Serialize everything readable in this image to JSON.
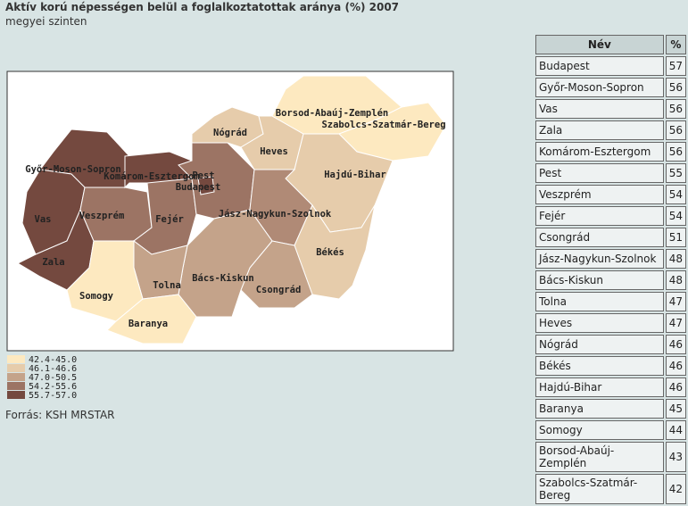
{
  "header": {
    "title": "Aktív korú népességen belül a foglalkoztatottak aránya (%) 2007",
    "subtitle": "megyei szinten"
  },
  "map": {
    "regions": [
      {
        "label": "Győr-Moson-Sopron",
        "color": "#74493f"
      },
      {
        "label": "Vas",
        "color": "#74493f"
      },
      {
        "label": "Zala",
        "color": "#74493f"
      },
      {
        "label": "Veszprém",
        "color": "#9c7464"
      },
      {
        "label": "Komárom-Esztergom",
        "color": "#74493f"
      },
      {
        "label": "Fejér",
        "color": "#9c7464"
      },
      {
        "label": "Pest",
        "color": "#9c7464"
      },
      {
        "label": "Budapest",
        "color": "#74493f"
      },
      {
        "label": "Nógrád",
        "color": "#e6ccab"
      },
      {
        "label": "Heves",
        "color": "#e6ccab"
      },
      {
        "label": "Borsod-Abaúj-Zemplén",
        "color": "#fde9c0"
      },
      {
        "label": "Szabolcs-Szatmár-Bereg",
        "color": "#fde9c0"
      },
      {
        "label": "Hajdú-Bihar",
        "color": "#e6ccab"
      },
      {
        "label": "Jász-Nagykun-Szolnok",
        "color": "#b08a76"
      },
      {
        "label": "Békés",
        "color": "#e6ccab"
      },
      {
        "label": "Csongrád",
        "color": "#c4a38a"
      },
      {
        "label": "Bács-Kiskun",
        "color": "#c4a38a"
      },
      {
        "label": "Tolna",
        "color": "#c4a38a"
      },
      {
        "label": "Somogy",
        "color": "#fde9c0"
      },
      {
        "label": "Baranya",
        "color": "#fde9c0"
      }
    ],
    "legend": [
      {
        "label": "42.4-45.0",
        "color": "#fde9c0"
      },
      {
        "label": "46.1-46.6",
        "color": "#e6ccab"
      },
      {
        "label": "47.0-50.5",
        "color": "#c4a38a"
      },
      {
        "label": "54.2-55.6",
        "color": "#9c7464"
      },
      {
        "label": "55.7-57.0",
        "color": "#74493f"
      }
    ],
    "source": "Forrás: KSH MRSTAR"
  },
  "table": {
    "header": [
      "Név",
      "%"
    ],
    "rows": [
      [
        "Budapest",
        57
      ],
      [
        "Győr-Moson-Sopron",
        56
      ],
      [
        "Vas",
        56
      ],
      [
        "Zala",
        56
      ],
      [
        "Komárom-Esztergom",
        56
      ],
      [
        "Pest",
        55
      ],
      [
        "Veszprém",
        54
      ],
      [
        "Fejér",
        54
      ],
      [
        "Csongrád",
        51
      ],
      [
        "Jász-Nagykun-Szolnok",
        48
      ],
      [
        "Bács-Kiskun",
        48
      ],
      [
        "Tolna",
        47
      ],
      [
        "Heves",
        47
      ],
      [
        "Nógrád",
        46
      ],
      [
        "Békés",
        46
      ],
      [
        "Hajdú-Bihar",
        46
      ],
      [
        "Baranya",
        45
      ],
      [
        "Somogy",
        44
      ],
      [
        "Borsod-Abaúj-Zemplén",
        43
      ],
      [
        "Szabolcs-Szatmár-Bereg",
        42
      ]
    ]
  }
}
